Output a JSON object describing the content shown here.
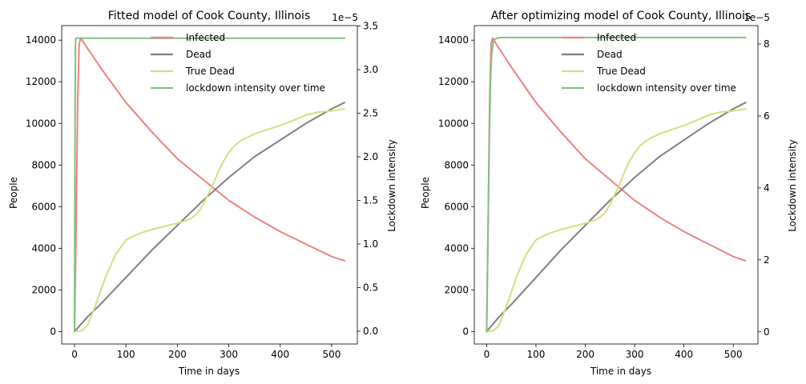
{
  "chart_data": [
    {
      "type": "line",
      "title": "Fitted model of Cook County, Illinois",
      "xlabel": "Time in days",
      "ylabel": "People",
      "ylabel_right": "Lockdown intensity",
      "right_axis_multiplier": "1e−5",
      "xlim": [
        -25,
        550
      ],
      "ylim": [
        -600,
        14700
      ],
      "ylim_right": [
        -1.467e-06,
        3.505e-05
      ],
      "x_ticks": [
        0,
        100,
        200,
        300,
        400,
        500
      ],
      "y_ticks": [
        0,
        2000,
        4000,
        6000,
        8000,
        10000,
        12000,
        14000
      ],
      "y_ticks_right": [
        0.0,
        0.5,
        1.0,
        1.5,
        2.0,
        2.5,
        3.0,
        3.5
      ],
      "y_tick_scale_right": 1e-05,
      "legend_position": "upper-right",
      "legend": [
        "Infected",
        "Dead",
        "True Dead",
        "lockdown intensity over time"
      ],
      "series": [
        {
          "name": "Infected",
          "color": "#f08080",
          "axis": "left",
          "x": [
            0,
            3,
            6,
            9,
            12,
            20,
            50,
            100,
            150,
            200,
            250,
            300,
            350,
            400,
            450,
            500,
            525
          ],
          "y": [
            0,
            5000,
            11000,
            13800,
            14100,
            13800,
            12700,
            11000,
            9600,
            8300,
            7300,
            6300,
            5500,
            4800,
            4200,
            3600,
            3400
          ]
        },
        {
          "name": "Dead",
          "color": "#808080",
          "axis": "left",
          "x": [
            0,
            25,
            50,
            100,
            150,
            200,
            250,
            300,
            350,
            400,
            450,
            500,
            525
          ],
          "y": [
            0,
            700,
            1300,
            2600,
            3900,
            5100,
            6300,
            7400,
            8400,
            9200,
            10000,
            10700,
            11000
          ]
        },
        {
          "name": "True Dead",
          "color": "#dbdb80",
          "axis": "left",
          "x": [
            0,
            15,
            25,
            40,
            60,
            80,
            100,
            125,
            150,
            175,
            200,
            225,
            240,
            250,
            260,
            270,
            280,
            290,
            300,
            310,
            325,
            350,
            375,
            400,
            425,
            450,
            475,
            500,
            525
          ],
          "y": [
            0,
            50,
            300,
            1200,
            2600,
            3700,
            4400,
            4700,
            4900,
            5050,
            5200,
            5400,
            5700,
            6100,
            6600,
            7100,
            7700,
            8200,
            8600,
            8900,
            9200,
            9500,
            9700,
            9900,
            10150,
            10400,
            10550,
            10600,
            10700
          ]
        },
        {
          "name": "lockdown intensity over time",
          "color": "#80c080",
          "axis": "right",
          "x": [
            0,
            1,
            2,
            3,
            5,
            10,
            50,
            100,
            200,
            300,
            400,
            500,
            525
          ],
          "y": [
            0,
            2.5e-05,
            3.35e-05,
            3.36e-05,
            3.36e-05,
            3.36e-05,
            3.36e-05,
            3.36e-05,
            3.36e-05,
            3.36e-05,
            3.36e-05,
            3.36e-05,
            3.36e-05
          ]
        }
      ]
    },
    {
      "type": "line",
      "title": "After optimizing model of Cook County, Illinois",
      "xlabel": "Time in days",
      "ylabel": "People",
      "ylabel_right": "Lockdown intensity",
      "right_axis_multiplier": "1e−5",
      "xlim": [
        -25,
        550
      ],
      "ylim": [
        -600,
        14700
      ],
      "ylim_right": [
        -3.39e-06,
        8.512e-05
      ],
      "x_ticks": [
        0,
        100,
        200,
        300,
        400,
        500
      ],
      "y_ticks": [
        0,
        2000,
        4000,
        6000,
        8000,
        10000,
        12000,
        14000
      ],
      "y_ticks_right": [
        0,
        2,
        4,
        6,
        8
      ],
      "y_tick_scale_right": 1e-05,
      "legend_position": "upper-right",
      "legend": [
        "Infected",
        "Dead",
        "True Dead",
        "lockdown intensity over time"
      ],
      "series": [
        {
          "name": "Infected",
          "color": "#f08080",
          "axis": "left",
          "x": [
            0,
            3,
            6,
            9,
            12,
            20,
            50,
            100,
            150,
            200,
            250,
            300,
            350,
            400,
            450,
            500,
            525
          ],
          "y": [
            0,
            5000,
            11000,
            13800,
            14100,
            13800,
            12700,
            11000,
            9600,
            8300,
            7300,
            6300,
            5500,
            4800,
            4200,
            3600,
            3400
          ]
        },
        {
          "name": "Dead",
          "color": "#808080",
          "axis": "left",
          "x": [
            0,
            25,
            50,
            100,
            150,
            200,
            250,
            300,
            350,
            400,
            450,
            500,
            525
          ],
          "y": [
            0,
            700,
            1300,
            2600,
            3900,
            5100,
            6300,
            7400,
            8400,
            9200,
            10000,
            10700,
            11000
          ]
        },
        {
          "name": "True Dead",
          "color": "#dbdb80",
          "axis": "left",
          "x": [
            0,
            15,
            25,
            40,
            60,
            80,
            100,
            125,
            150,
            175,
            200,
            225,
            240,
            250,
            260,
            270,
            280,
            290,
            300,
            310,
            325,
            350,
            375,
            400,
            425,
            450,
            475,
            500,
            525
          ],
          "y": [
            0,
            50,
            300,
            1200,
            2600,
            3700,
            4400,
            4700,
            4900,
            5050,
            5200,
            5400,
            5700,
            6100,
            6600,
            7100,
            7700,
            8200,
            8600,
            8900,
            9200,
            9500,
            9700,
            9900,
            10150,
            10400,
            10550,
            10600,
            10700
          ]
        },
        {
          "name": "lockdown intensity over time",
          "color": "#80c080",
          "axis": "right",
          "x": [
            0,
            2,
            4,
            6,
            8,
            10,
            14,
            20,
            30,
            50,
            100,
            200,
            300,
            400,
            500,
            525
          ],
          "y": [
            0,
            2e-05,
            4e-05,
            5.8e-05,
            7e-05,
            7.7e-05,
            8.1e-05,
            8.16e-05,
            8.18e-05,
            8.18e-05,
            8.18e-05,
            8.18e-05,
            8.18e-05,
            8.18e-05,
            8.18e-05,
            8.18e-05
          ]
        }
      ]
    }
  ]
}
